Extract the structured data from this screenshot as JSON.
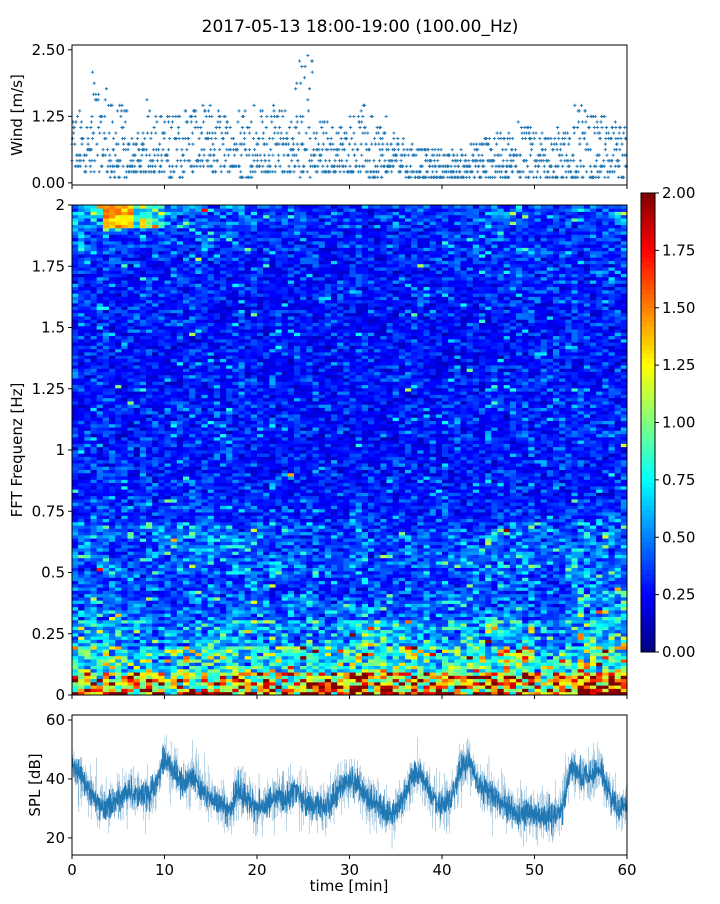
{
  "title": "2017-05-13 18:00-19:00 (100.00_Hz)",
  "chart_data": [
    {
      "type": "scatter",
      "panel": "wind",
      "ylabel": "Wind [m/s]",
      "ylim": [
        -0.04,
        2.59
      ],
      "xlim": [
        0,
        60
      ],
      "yticks": [
        "0.00",
        "1.25",
        "2.50"
      ],
      "ytick_values": [
        0,
        1.25,
        2.5
      ],
      "marker": "+",
      "color": "#1f77b4",
      "time_segments_min": [
        0,
        2,
        4,
        6,
        8,
        10,
        12,
        14,
        16,
        18,
        20,
        22,
        24,
        26,
        28,
        30,
        32,
        34,
        36,
        38,
        40,
        42,
        44,
        46,
        48,
        50,
        52,
        54,
        56,
        58
      ],
      "wind_max": [
        1.4,
        2.1,
        1.5,
        0.95,
        1.7,
        1.35,
        1.6,
        1.45,
        1.3,
        1.6,
        1.45,
        1.4,
        2.5,
        1.25,
        1.1,
        1.5,
        1.3,
        0.9,
        0.7,
        0.7,
        0.6,
        0.8,
        1.0,
        1.0,
        1.3,
        0.9,
        1.0,
        1.45,
        1.3,
        1.1
      ],
      "wind_min": [
        0.2,
        0.2,
        0.1,
        0.2,
        0.2,
        0.1,
        0.2,
        0.2,
        0.2,
        0.1,
        0.2,
        0.2,
        0.1,
        0.2,
        0.2,
        0.2,
        0.1,
        0.2,
        0.1,
        0.1,
        0.1,
        0.1,
        0.1,
        0.1,
        0.1,
        0.1,
        0.1,
        0.1,
        0.1,
        0.1
      ]
    },
    {
      "type": "heatmap",
      "panel": "spectrogram",
      "ylabel": "FFT Frequenz [Hz]",
      "ylim": [
        0,
        2
      ],
      "xlim": [
        0,
        60
      ],
      "yticks": [
        "0",
        "0.25",
        "0.5",
        "0.75",
        "1",
        "1.25",
        "1.5",
        "1.75",
        "2"
      ],
      "ytick_values": [
        0,
        0.25,
        0.5,
        0.75,
        1,
        1.25,
        1.5,
        1.75,
        2
      ],
      "colormap": "jet",
      "clim": [
        0,
        2
      ],
      "colorbar_ticks": [
        "0.00",
        "0.25",
        "0.50",
        "0.75",
        "1.00",
        "1.25",
        "1.50",
        "1.75",
        "2.00"
      ],
      "time_edges_min": [
        0,
        5,
        10,
        15,
        20,
        25,
        30,
        35,
        40,
        45,
        50,
        55,
        60
      ],
      "freq_edges_hz": [
        0,
        0.1,
        0.2,
        0.3,
        0.4,
        0.5,
        0.6,
        0.7,
        0.8,
        0.9,
        1.0,
        1.1,
        1.2,
        1.3,
        1.4,
        1.5,
        1.6,
        1.7,
        1.8,
        1.9,
        2.0
      ],
      "values": [
        [
          1.3,
          1.2,
          1.1,
          1.2,
          1.1,
          1.3,
          1.5,
          1.3,
          1.2,
          1.4,
          1.3,
          1.6
        ],
        [
          0.8,
          0.7,
          0.7,
          0.75,
          0.7,
          0.8,
          0.9,
          0.8,
          0.8,
          0.85,
          0.7,
          0.9
        ],
        [
          0.55,
          0.5,
          0.5,
          0.55,
          0.5,
          0.55,
          0.7,
          0.6,
          0.55,
          0.6,
          0.5,
          0.7
        ],
        [
          0.45,
          0.4,
          0.4,
          0.45,
          0.4,
          0.4,
          0.45,
          0.4,
          0.45,
          0.45,
          0.4,
          0.55
        ],
        [
          0.4,
          0.35,
          0.35,
          0.4,
          0.35,
          0.35,
          0.35,
          0.35,
          0.4,
          0.4,
          0.35,
          0.5
        ],
        [
          0.45,
          0.4,
          0.45,
          0.45,
          0.4,
          0.4,
          0.38,
          0.38,
          0.45,
          0.45,
          0.45,
          0.45
        ],
        [
          0.45,
          0.45,
          0.5,
          0.45,
          0.4,
          0.35,
          0.35,
          0.35,
          0.4,
          0.45,
          0.4,
          0.45
        ],
        [
          0.35,
          0.33,
          0.35,
          0.32,
          0.3,
          0.3,
          0.3,
          0.3,
          0.3,
          0.32,
          0.32,
          0.35
        ],
        [
          0.3,
          0.28,
          0.3,
          0.3,
          0.28,
          0.27,
          0.27,
          0.28,
          0.28,
          0.3,
          0.3,
          0.32
        ],
        [
          0.3,
          0.28,
          0.3,
          0.3,
          0.28,
          0.27,
          0.27,
          0.28,
          0.28,
          0.3,
          0.3,
          0.3
        ],
        [
          0.3,
          0.28,
          0.3,
          0.3,
          0.28,
          0.27,
          0.27,
          0.28,
          0.28,
          0.3,
          0.3,
          0.3
        ],
        [
          0.3,
          0.28,
          0.3,
          0.32,
          0.3,
          0.27,
          0.27,
          0.28,
          0.3,
          0.3,
          0.3,
          0.3
        ],
        [
          0.3,
          0.28,
          0.3,
          0.3,
          0.28,
          0.27,
          0.27,
          0.28,
          0.28,
          0.3,
          0.3,
          0.3
        ],
        [
          0.28,
          0.27,
          0.28,
          0.28,
          0.27,
          0.26,
          0.26,
          0.27,
          0.27,
          0.28,
          0.28,
          0.28
        ],
        [
          0.28,
          0.27,
          0.28,
          0.28,
          0.27,
          0.26,
          0.26,
          0.27,
          0.27,
          0.28,
          0.28,
          0.28
        ],
        [
          0.3,
          0.28,
          0.28,
          0.28,
          0.27,
          0.26,
          0.26,
          0.27,
          0.27,
          0.28,
          0.28,
          0.3
        ],
        [
          0.3,
          0.28,
          0.3,
          0.3,
          0.28,
          0.27,
          0.27,
          0.28,
          0.28,
          0.3,
          0.3,
          0.3
        ],
        [
          0.32,
          0.3,
          0.32,
          0.3,
          0.28,
          0.27,
          0.27,
          0.28,
          0.3,
          0.32,
          0.3,
          0.32
        ],
        [
          0.4,
          0.35,
          0.35,
          0.35,
          0.3,
          0.28,
          0.28,
          0.3,
          0.32,
          0.35,
          0.32,
          0.35
        ],
        [
          0.6,
          0.8,
          0.45,
          0.4,
          0.35,
          0.3,
          0.3,
          0.3,
          0.35,
          0.4,
          0.35,
          0.4
        ]
      ]
    },
    {
      "type": "line",
      "panel": "spl",
      "ylabel": "SPL [dB]",
      "xlabel": "time [min]",
      "ylim": [
        14.2,
        61.7
      ],
      "xlim": [
        0,
        60
      ],
      "yticks": [
        "20",
        "40",
        "60"
      ],
      "ytick_values": [
        20,
        40,
        60
      ],
      "xticks": [
        "0",
        "10",
        "20",
        "30",
        "40",
        "50",
        "60"
      ],
      "xtick_values": [
        0,
        10,
        20,
        30,
        40,
        50,
        60
      ],
      "color": "#1f77b4",
      "x": [
        0,
        1,
        2,
        3,
        4,
        5,
        6,
        7,
        8,
        9,
        10,
        11,
        12,
        13,
        14,
        15,
        16,
        17,
        18,
        19,
        20,
        21,
        22,
        23,
        24,
        25,
        26,
        27,
        28,
        29,
        30,
        31,
        32,
        33,
        34,
        35,
        36,
        37,
        38,
        39,
        40,
        41,
        42,
        43,
        44,
        45,
        46,
        47,
        48,
        49,
        50,
        51,
        52,
        53,
        54,
        55,
        56,
        57,
        58,
        59,
        60
      ],
      "y": [
        45,
        40,
        36,
        30,
        31,
        33,
        36,
        35,
        34,
        37,
        47,
        43,
        38,
        42,
        36,
        33,
        32,
        29,
        36,
        33,
        30,
        31,
        34,
        33,
        37,
        32,
        31,
        30,
        32,
        37,
        40,
        38,
        33,
        32,
        28,
        29,
        35,
        42,
        40,
        33,
        30,
        33,
        44,
        46,
        38,
        36,
        33,
        31,
        28,
        29,
        28,
        27,
        27,
        30,
        45,
        40,
        41,
        44,
        36,
        30,
        31
      ]
    }
  ]
}
